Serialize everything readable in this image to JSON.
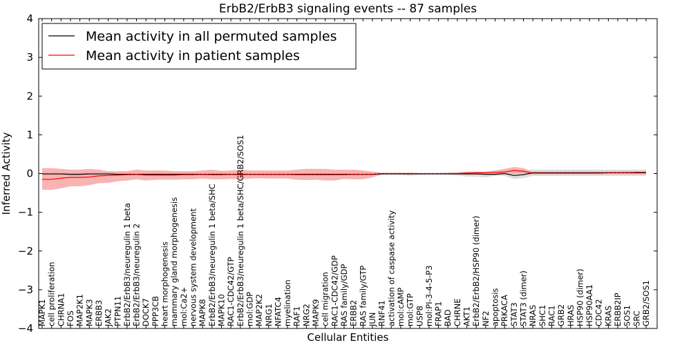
{
  "chart_data": {
    "type": "line",
    "title": "ErbB2/ErbB3 signaling events -- 87 samples",
    "xlabel": "Cellular Entities",
    "ylabel": "Inferred Activity",
    "ylim": [
      -4,
      4
    ],
    "yticks": [
      "−4",
      "−3",
      "−2",
      "−1",
      "0",
      "1",
      "2",
      "3",
      "4"
    ],
    "legend_position": "upper-left",
    "colors": {
      "permuted": "#000000",
      "patient": "#ff0000",
      "patient_band": "#f79a9a",
      "permuted_band": "#c8c8c8"
    },
    "categories": [
      "MAPK1",
      "cell proliferation",
      "CHRNA1",
      "FOS",
      "MAP2K1",
      "MAPK3",
      "ERBB3",
      "JAK2",
      "PTPN11",
      "ErbB2/ErbB3/neuregulin 1 beta",
      "ErbB2/ErbB3/neuregulin 2",
      "DOCK7",
      "PPP3CB",
      "heart morphogenesis",
      "mammary gland morphogenesis",
      "mol:Ca2+",
      "nervous system development",
      "MAPK8",
      "ErbB2/ErbB3/neuregulin 1 beta/SHC",
      "MAPK10",
      "RAC1-CDC42/GTP",
      "ErbB2/ErbB3/neuregulin 1 beta/SHC/GRB2/SOS1",
      "mol:GDP",
      "MAP2K2",
      "NRG1",
      "NFATC4",
      "myelination",
      "RAF1",
      "NRG2",
      "MAPK9",
      "cell migration",
      "RAC1-CDC42/GDP",
      "RAS family/GDP",
      "ERBB2",
      "RAS family/GTP",
      "JUN",
      "RNF41",
      "activation of caspase activity",
      "mol:cAMP",
      "mol:GTP",
      "USP8",
      "mol:PI-3-4-5-P3",
      "FRAP1",
      "BAD",
      "CHRNE",
      "AKT1",
      "ErbB2/ErbB2/HSP90 (dimer)",
      "NF2",
      "apoptosis",
      "PRKACA",
      "STAT3",
      "STAT3 (dimer)",
      "NRAS",
      "SHC1",
      "RAC1",
      "GRB2",
      "HRAS",
      "HSP90 (dimer)",
      "HSP90AA1",
      "CDC42",
      "KRAS",
      "ERBB2IP",
      "SOS1",
      "SRC",
      "GRB2/SOS1"
    ],
    "series": [
      {
        "name": "Mean activity in all permuted samples",
        "values": [
          -0.01,
          -0.01,
          -0.01,
          -0.02,
          -0.02,
          -0.01,
          -0.01,
          -0.01,
          -0.02,
          -0.02,
          -0.02,
          -0.02,
          -0.02,
          -0.02,
          -0.02,
          -0.02,
          -0.02,
          -0.02,
          -0.02,
          -0.02,
          -0.02,
          -0.02,
          -0.02,
          -0.02,
          -0.02,
          -0.02,
          -0.02,
          -0.02,
          -0.02,
          -0.02,
          -0.02,
          -0.02,
          -0.02,
          -0.02,
          -0.02,
          -0.02,
          -0.01,
          -0.01,
          -0.01,
          -0.01,
          -0.01,
          -0.01,
          -0.01,
          -0.01,
          -0.01,
          -0.01,
          -0.01,
          -0.02,
          -0.02,
          0.0,
          -0.05,
          -0.03,
          0.02,
          0.02,
          0.02,
          0.02,
          0.02,
          0.02,
          0.02,
          0.02,
          0.02,
          0.02,
          0.02,
          0.02,
          0.02
        ],
        "band": [
          [
            -0.05,
            0.03
          ],
          [
            -0.05,
            0.03
          ],
          [
            -0.05,
            0.03
          ],
          [
            -0.06,
            0.03
          ],
          [
            -0.06,
            0.03
          ],
          [
            -0.05,
            0.03
          ],
          [
            -0.05,
            0.03
          ],
          [
            -0.05,
            0.03
          ],
          [
            -0.06,
            0.03
          ],
          [
            -0.06,
            0.03
          ],
          [
            -0.06,
            0.03
          ],
          [
            -0.06,
            0.03
          ],
          [
            -0.06,
            0.03
          ],
          [
            -0.06,
            0.03
          ],
          [
            -0.06,
            0.03
          ],
          [
            -0.06,
            0.03
          ],
          [
            -0.06,
            0.03
          ],
          [
            -0.06,
            0.03
          ],
          [
            -0.06,
            0.03
          ],
          [
            -0.06,
            0.03
          ],
          [
            -0.06,
            0.03
          ],
          [
            -0.06,
            0.03
          ],
          [
            -0.06,
            0.03
          ],
          [
            -0.06,
            0.03
          ],
          [
            -0.06,
            0.03
          ],
          [
            -0.06,
            0.03
          ],
          [
            -0.06,
            0.03
          ],
          [
            -0.06,
            0.03
          ],
          [
            -0.06,
            0.03
          ],
          [
            -0.06,
            0.03
          ],
          [
            -0.06,
            0.03
          ],
          [
            -0.06,
            0.03
          ],
          [
            -0.06,
            0.03
          ],
          [
            -0.06,
            0.03
          ],
          [
            -0.06,
            0.03
          ],
          [
            -0.05,
            0.02
          ],
          [
            -0.03,
            0.01
          ],
          [
            -0.02,
            0.0
          ],
          [
            -0.03,
            0.01
          ],
          [
            -0.06,
            0.02
          ],
          [
            -0.03,
            0.01
          ],
          [
            -0.02,
            0.0
          ],
          [
            -0.02,
            0.0
          ],
          [
            -0.03,
            0.01
          ],
          [
            -0.05,
            0.03
          ],
          [
            -0.08,
            0.05
          ],
          [
            -0.08,
            0.05
          ],
          [
            -0.1,
            0.04
          ],
          [
            -0.06,
            0.04
          ],
          [
            -0.06,
            0.06
          ],
          [
            -0.14,
            0.06
          ],
          [
            -0.12,
            0.08
          ],
          [
            -0.06,
            0.1
          ],
          [
            -0.06,
            0.1
          ],
          [
            -0.06,
            0.1
          ],
          [
            -0.06,
            0.1
          ],
          [
            -0.06,
            0.1
          ],
          [
            -0.06,
            0.1
          ],
          [
            -0.06,
            0.1
          ],
          [
            -0.06,
            0.1
          ],
          [
            -0.06,
            0.1
          ],
          [
            -0.06,
            0.1
          ],
          [
            -0.06,
            0.1
          ],
          [
            -0.06,
            0.1
          ],
          [
            -0.06,
            0.1
          ]
        ]
      },
      {
        "name": "Mean activity in patient samples",
        "values": [
          -0.15,
          -0.15,
          -0.12,
          -0.1,
          -0.1,
          -0.09,
          -0.06,
          -0.05,
          -0.04,
          -0.03,
          -0.02,
          -0.04,
          -0.04,
          -0.04,
          -0.04,
          -0.03,
          -0.03,
          -0.02,
          -0.03,
          -0.03,
          -0.02,
          -0.03,
          -0.02,
          -0.02,
          -0.02,
          -0.02,
          -0.02,
          -0.03,
          -0.03,
          -0.03,
          -0.03,
          -0.03,
          -0.03,
          -0.02,
          -0.02,
          -0.02,
          0.0,
          0.0,
          0.0,
          0.0,
          0.0,
          0.0,
          0.0,
          0.0,
          0.0,
          0.01,
          0.02,
          0.02,
          0.03,
          0.04,
          0.08,
          0.06,
          0.01,
          0.01,
          0.01,
          0.01,
          0.01,
          0.01,
          0.01,
          0.01,
          0.02,
          0.02,
          0.02,
          0.03,
          0.03
        ],
        "band": [
          [
            -0.42,
            0.14
          ],
          [
            -0.42,
            0.14
          ],
          [
            -0.38,
            0.12
          ],
          [
            -0.33,
            0.1
          ],
          [
            -0.33,
            0.1
          ],
          [
            -0.3,
            0.12
          ],
          [
            -0.25,
            0.1
          ],
          [
            -0.24,
            0.06
          ],
          [
            -0.2,
            0.06
          ],
          [
            -0.18,
            0.06
          ],
          [
            -0.15,
            0.1
          ],
          [
            -0.18,
            0.08
          ],
          [
            -0.16,
            0.08
          ],
          [
            -0.16,
            0.08
          ],
          [
            -0.16,
            0.06
          ],
          [
            -0.15,
            0.06
          ],
          [
            -0.15,
            0.06
          ],
          [
            -0.13,
            0.08
          ],
          [
            -0.15,
            0.1
          ],
          [
            -0.15,
            0.07
          ],
          [
            -0.14,
            0.08
          ],
          [
            -0.15,
            0.1
          ],
          [
            -0.13,
            0.08
          ],
          [
            -0.12,
            0.08
          ],
          [
            -0.13,
            0.08
          ],
          [
            -0.13,
            0.08
          ],
          [
            -0.13,
            0.08
          ],
          [
            -0.16,
            0.1
          ],
          [
            -0.17,
            0.12
          ],
          [
            -0.16,
            0.12
          ],
          [
            -0.18,
            0.12
          ],
          [
            -0.18,
            0.1
          ],
          [
            -0.14,
            0.1
          ],
          [
            -0.15,
            0.1
          ],
          [
            -0.15,
            0.08
          ],
          [
            -0.1,
            0.05
          ],
          [
            -0.03,
            0.02
          ],
          [
            -0.02,
            0.02
          ],
          [
            -0.02,
            0.02
          ],
          [
            -0.02,
            0.02
          ],
          [
            -0.01,
            0.01
          ],
          [
            -0.01,
            0.01
          ],
          [
            -0.01,
            0.01
          ],
          [
            -0.02,
            0.02
          ],
          [
            -0.02,
            0.03
          ],
          [
            -0.03,
            0.05
          ],
          [
            -0.03,
            0.05
          ],
          [
            -0.02,
            0.05
          ],
          [
            -0.01,
            0.08
          ],
          [
            0.0,
            0.12
          ],
          [
            0.0,
            0.17
          ],
          [
            0.0,
            0.14
          ],
          [
            -0.02,
            0.04
          ],
          [
            -0.02,
            0.04
          ],
          [
            -0.02,
            0.04
          ],
          [
            -0.02,
            0.04
          ],
          [
            -0.02,
            0.04
          ],
          [
            -0.02,
            0.04
          ],
          [
            -0.02,
            0.04
          ],
          [
            -0.02,
            0.05
          ],
          [
            -0.02,
            0.05
          ],
          [
            -0.02,
            0.05
          ],
          [
            -0.02,
            0.06
          ],
          [
            -0.02,
            0.06
          ],
          [
            -0.02,
            0.06
          ]
        ]
      }
    ]
  }
}
